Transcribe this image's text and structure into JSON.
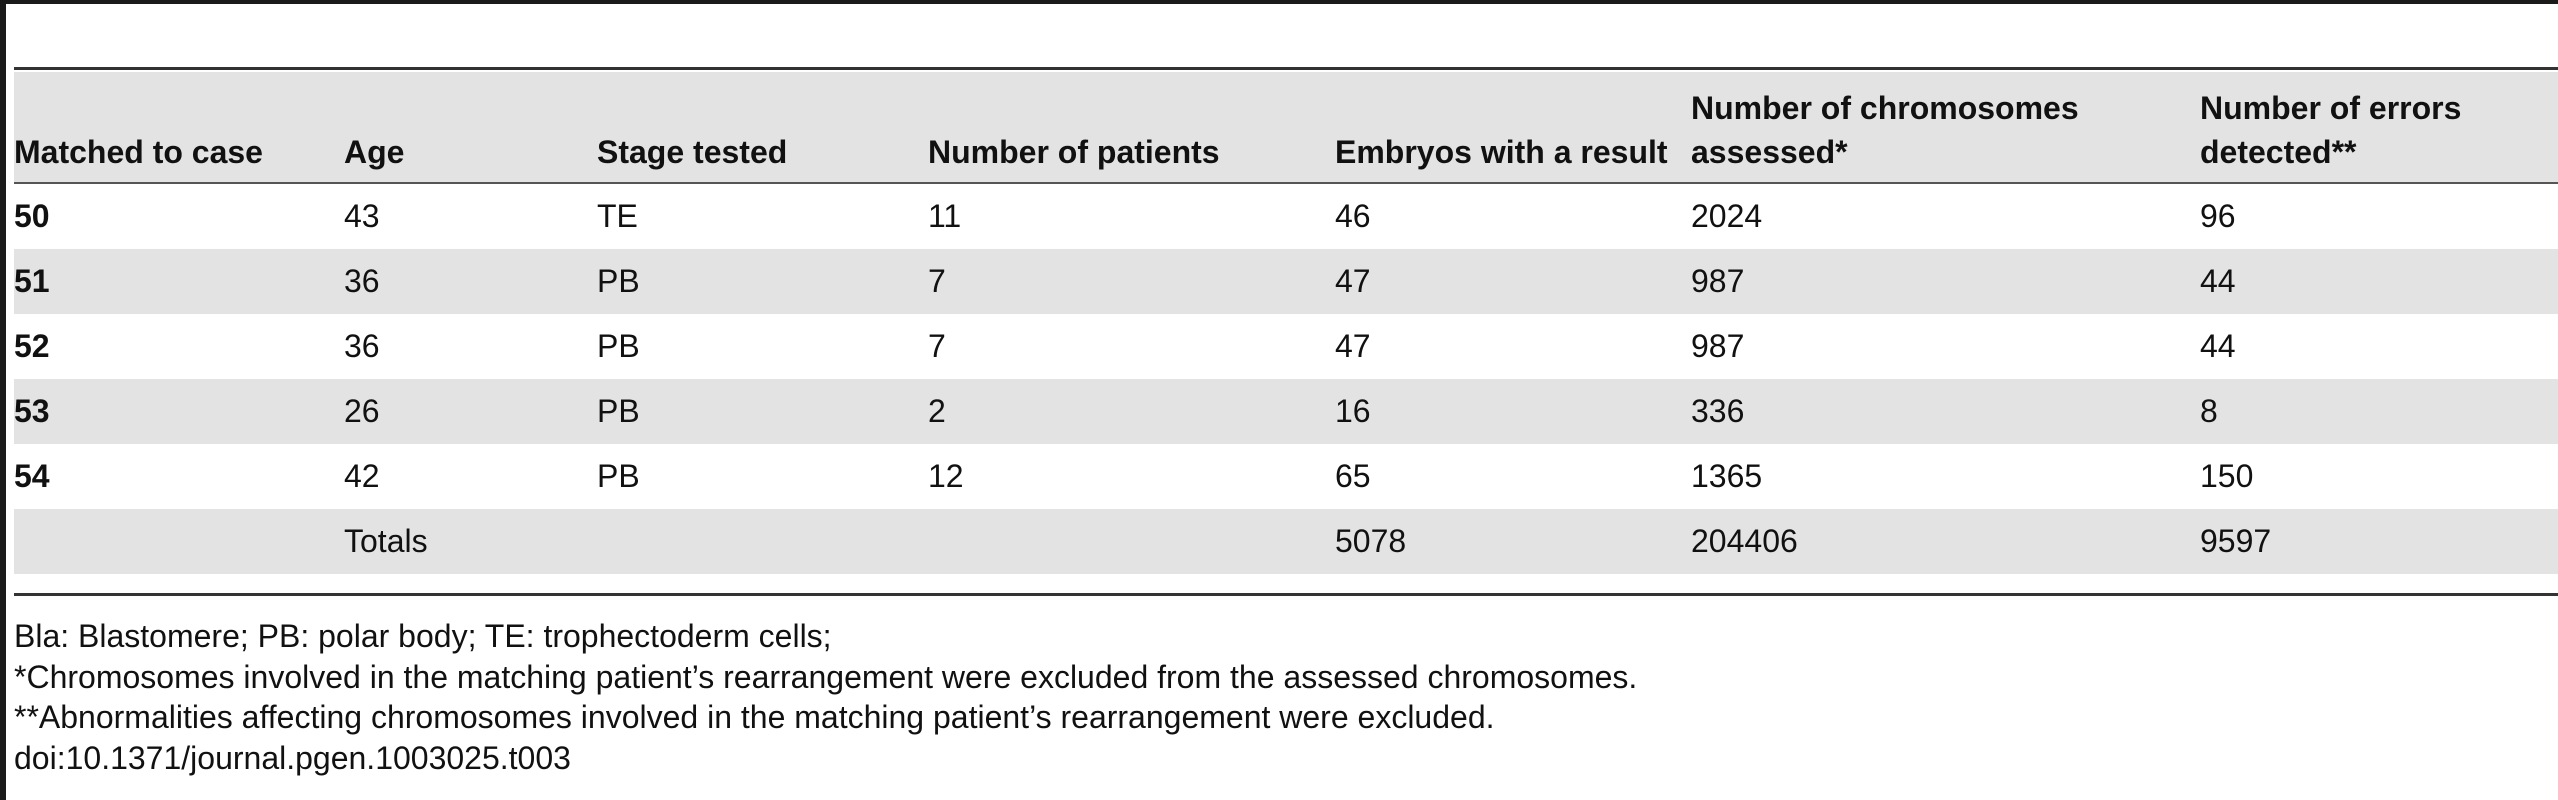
{
  "table": {
    "columns": [
      "Matched to case",
      "Age",
      "Stage tested",
      "Number of patients",
      "Embryos with a result",
      "Number of chromosomes assessed*",
      "Number of errors detected**"
    ],
    "rows": [
      [
        "50",
        "43",
        "TE",
        "11",
        "46",
        "2024",
        "96"
      ],
      [
        "51",
        "36",
        "PB",
        "7",
        "47",
        "987",
        "44"
      ],
      [
        "52",
        "36",
        "PB",
        "7",
        "47",
        "987",
        "44"
      ],
      [
        "53",
        "26",
        "PB",
        "2",
        "16",
        "336",
        "8"
      ],
      [
        "54",
        "42",
        "PB",
        "12",
        "65",
        "1365",
        "150"
      ],
      [
        "",
        "Totals",
        "",
        "",
        "5078",
        "204406",
        "9597"
      ]
    ]
  },
  "footnotes": {
    "abbreviations": "Bla: Blastomere; PB: polar body; TE: trophectoderm cells;",
    "note1": "*Chromosomes involved in the matching patient’s rearrangement were excluded from the assessed chromosomes.",
    "note2": "**Abnormalities affecting chromosomes involved in the matching patient’s rearrangement were excluded.",
    "doi": "doi:10.1371/journal.pgen.1003025.t003"
  }
}
